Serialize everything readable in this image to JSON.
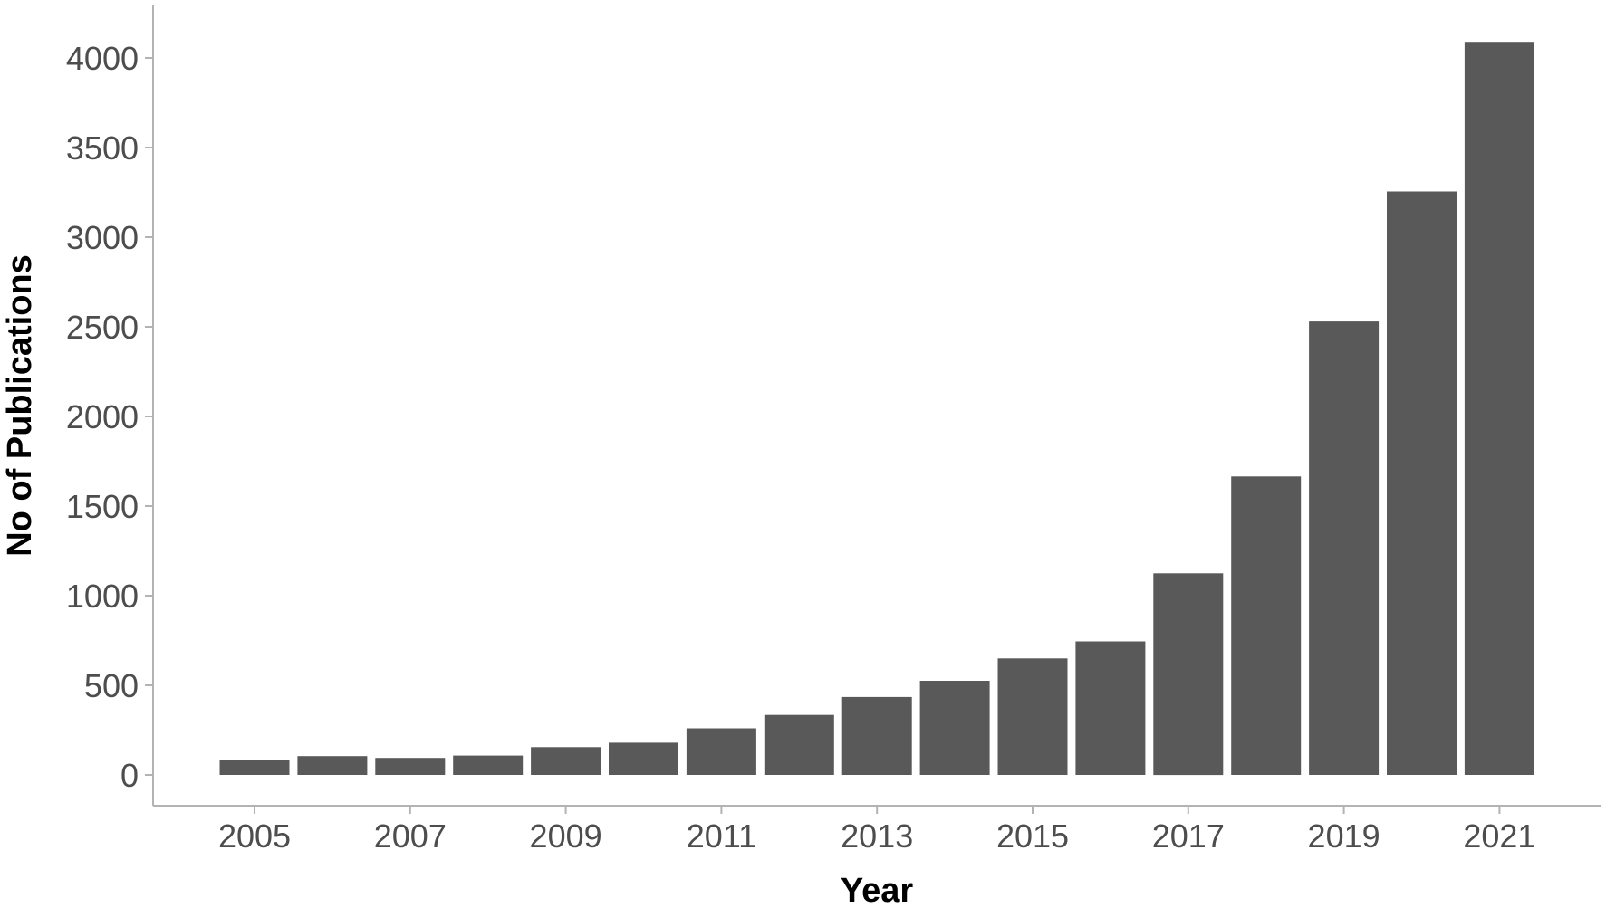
{
  "chart_data": {
    "type": "bar",
    "title": "",
    "xlabel": "Year",
    "ylabel": "No of Publications",
    "categories": [
      "2005",
      "2006",
      "2007",
      "2008",
      "2009",
      "2010",
      "2011",
      "2012",
      "2013",
      "2014",
      "2015",
      "2016",
      "2017",
      "2018",
      "2019",
      "2020",
      "2021"
    ],
    "values": [
      85,
      105,
      95,
      108,
      155,
      180,
      260,
      335,
      435,
      525,
      650,
      745,
      1125,
      1665,
      2530,
      3255,
      4090
    ],
    "x_tick_labels": [
      "2005",
      "2007",
      "2009",
      "2011",
      "2013",
      "2015",
      "2017",
      "2019",
      "2021"
    ],
    "y_ticks": [
      0,
      500,
      1000,
      1500,
      2000,
      2500,
      3000,
      3500,
      4000
    ],
    "y_tick_labels": [
      "0",
      "500",
      "1000",
      "1500",
      "2000",
      "2500",
      "3000",
      "3500",
      "4000"
    ],
    "ylim": [
      -200,
      4200
    ],
    "grid": false,
    "legend": "none",
    "colors": {
      "bar": "#595959",
      "axis": "#b3b3b3",
      "tick_text": "#4d4d4d"
    }
  }
}
